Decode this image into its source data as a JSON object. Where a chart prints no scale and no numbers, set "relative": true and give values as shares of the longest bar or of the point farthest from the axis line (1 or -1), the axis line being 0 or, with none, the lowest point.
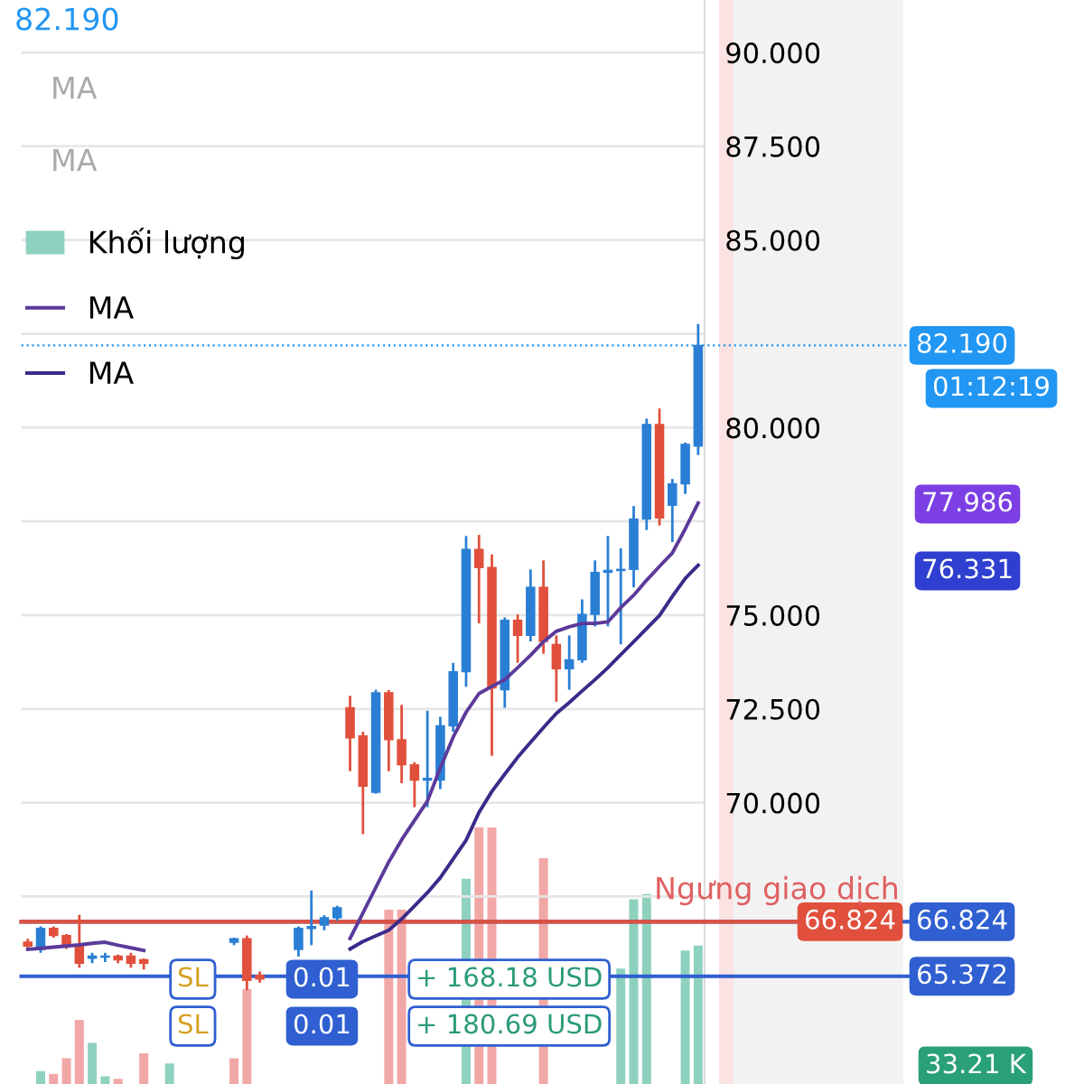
{
  "chart_data": [
    {
      "type": "candlestick",
      "categories": [
        null,
        null,
        null,
        null,
        null,
        null,
        null,
        null,
        null,
        null,
        null,
        null,
        null,
        null,
        null,
        null,
        null,
        null,
        null,
        null,
        null,
        null,
        null,
        null,
        null,
        null,
        null,
        null,
        null,
        null,
        null,
        null,
        null,
        null,
        null,
        null,
        null,
        null,
        null,
        null,
        null,
        null,
        null,
        null,
        null,
        null,
        null,
        null,
        null,
        null,
        null,
        null,
        null
      ],
      "ohlc": [
        [
          66.28,
          66.37,
          66.09,
          66.18
        ],
        [
          66.09,
          66.7,
          66.0,
          66.65
        ],
        [
          66.65,
          66.7,
          66.4,
          66.46
        ],
        [
          66.46,
          66.5,
          66.1,
          66.18
        ],
        [
          66.18,
          67.01,
          65.6,
          65.72
        ],
        [
          65.85,
          66.0,
          65.72,
          65.91
        ],
        [
          65.88,
          66.0,
          65.75,
          65.91
        ],
        [
          65.91,
          65.95,
          65.72,
          65.81
        ],
        [
          65.91,
          66.0,
          65.6,
          65.72
        ],
        [
          65.81,
          65.85,
          65.55,
          65.72
        ],
        null,
        null,
        null,
        null,
        null,
        null,
        [
          66.28,
          66.4,
          66.2,
          66.37
        ],
        [
          66.37,
          66.46,
          65.0,
          65.26
        ],
        [
          65.4,
          65.5,
          65.2,
          65.3
        ],
        null,
        null,
        [
          66.09,
          66.7,
          65.9,
          66.65
        ],
        [
          66.65,
          67.66,
          66.2,
          66.7
        ],
        [
          66.74,
          67.0,
          66.6,
          66.93
        ],
        [
          66.93,
          67.25,
          66.85,
          67.2
        ],
        [
          72.53,
          72.85,
          70.84,
          71.73
        ],
        [
          71.78,
          71.89,
          69.16,
          70.44
        ],
        [
          70.28,
          73.01,
          70.24,
          72.93
        ],
        [
          72.93,
          73.0,
          70.84,
          71.68
        ],
        [
          71.68,
          72.61,
          70.52,
          71.01
        ],
        [
          71.01,
          71.08,
          69.88,
          70.6
        ],
        [
          70.6,
          72.45,
          69.88,
          70.65
        ],
        [
          70.6,
          72.29,
          70.36,
          72.05
        ],
        [
          72.05,
          73.73,
          71.89,
          73.49
        ],
        [
          73.49,
          77.11,
          73.09,
          76.75
        ],
        [
          76.75,
          77.14,
          74.78,
          76.27
        ],
        [
          76.27,
          76.62,
          71.25,
          73.06
        ],
        [
          73.01,
          74.94,
          72.53,
          74.86
        ],
        [
          74.86,
          75.02,
          73.73,
          74.46
        ],
        [
          74.46,
          76.22,
          74.3,
          75.74
        ],
        [
          75.74,
          76.46,
          73.97,
          74.3
        ],
        [
          74.22,
          74.46,
          72.69,
          73.57
        ],
        [
          73.57,
          74.46,
          73.01,
          73.81
        ],
        [
          73.81,
          75.42,
          73.73,
          75.02
        ],
        [
          75.02,
          76.46,
          74.7,
          76.14
        ],
        [
          76.14,
          77.11,
          74.7,
          76.19
        ],
        [
          76.19,
          76.78,
          74.22,
          76.22
        ],
        [
          76.22,
          77.91,
          75.74,
          77.56
        ],
        [
          77.56,
          80.24,
          77.27,
          80.08
        ],
        [
          80.08,
          80.51,
          77.39,
          77.59
        ],
        [
          77.93,
          78.63,
          76.95,
          78.5
        ],
        [
          78.5,
          79.6,
          78.23,
          79.55
        ],
        [
          79.51,
          82.76,
          79.27,
          82.19
        ]
      ],
      "colors": [
        "#e0503c",
        "#2a7fd4",
        "#e0503c",
        "#e0503c",
        "#e0503c",
        "#2a7fd4",
        "#2a7fd4",
        "#e0503c",
        "#e0503c",
        "#e0503c",
        null,
        null,
        null,
        null,
        null,
        null,
        "#2a7fd4",
        "#e0503c",
        "#e0503c",
        null,
        null,
        "#2a7fd4",
        "#2a7fd4",
        "#2a7fd4",
        "#2a7fd4",
        "#e0503c",
        "#e0503c",
        "#2a7fd4",
        "#e0503c",
        "#e0503c",
        "#e0503c",
        "#2a7fd4",
        "#2a7fd4",
        "#2a7fd4",
        "#2a7fd4",
        "#e0503c",
        "#e0503c",
        "#2a7fd4",
        "#e0503c",
        "#2a7fd4",
        "#e0503c",
        "#e0503c",
        "#2a7fd4",
        "#2a7fd4",
        "#2a7fd4",
        "#2a7fd4",
        "#2a7fd4",
        "#2a7fd4",
        "#2a7fd4",
        "#e0503c",
        "#2a7fd4",
        "#2a7fd4",
        "#2a7fd4"
      ],
      "series": [
        {
          "name": "MA",
          "type": "line",
          "color": "#5b3a9a",
          "values": [
            66.09,
            66.12,
            66.15,
            66.18,
            66.21,
            66.25,
            66.28,
            66.2,
            66.13,
            66.06,
            null,
            null,
            null,
            null,
            null,
            null,
            null,
            null,
            null,
            null,
            null,
            null,
            null,
            null,
            null,
            66.38,
            67.06,
            67.74,
            68.42,
            69.01,
            69.53,
            70.04,
            70.93,
            71.75,
            72.41,
            72.91,
            73.1,
            73.28,
            73.6,
            73.93,
            74.29,
            74.57,
            74.69,
            74.78,
            74.78,
            74.82,
            75.2,
            75.53,
            75.93,
            76.3,
            76.66,
            77.3,
            77.99
          ]
        },
        {
          "name": "MA",
          "type": "line",
          "color": "#3b2a8a",
          "values": [
            null,
            null,
            null,
            null,
            null,
            null,
            null,
            null,
            null,
            null,
            null,
            null,
            null,
            null,
            null,
            null,
            null,
            null,
            null,
            null,
            null,
            null,
            null,
            null,
            null,
            66.1,
            66.3,
            66.45,
            66.6,
            66.9,
            67.25,
            67.6,
            68.0,
            68.5,
            69.0,
            69.74,
            70.3,
            70.76,
            71.21,
            71.61,
            72.0,
            72.38,
            72.67,
            72.98,
            73.28,
            73.6,
            73.95,
            74.29,
            74.64,
            74.99,
            75.5,
            75.98,
            76.33
          ]
        }
      ],
      "ylim": [
        62.5,
        91.4
      ],
      "yticks": [
        {
          "value": 67.5,
          "label": null
        },
        {
          "value": 70,
          "label": "70.000"
        },
        {
          "value": 72.5,
          "label": "72.500"
        },
        {
          "value": 75,
          "label": "75.000"
        },
        {
          "value": 77.5,
          "label": null
        },
        {
          "value": 80,
          "label": "80.000"
        },
        {
          "value": 82.5,
          "label": null
        },
        {
          "value": 85,
          "label": "85.000"
        },
        {
          "value": 87.5,
          "label": "87.500"
        },
        {
          "value": 90,
          "label": "90.000"
        }
      ],
      "tick_labels": "y",
      "grid": "y",
      "legend": "top left",
      "ref_lines": [
        {
          "axis": "y",
          "value": 82.19,
          "label": "82.190",
          "color": "#2196f3",
          "line_style": "dotted"
        },
        {
          "axis": "y",
          "value": 66.824,
          "label": "66.824",
          "color": "#2f5fd0",
          "line_style": "solid"
        },
        {
          "axis": "y",
          "value": 66.824,
          "label": "66.824",
          "color": "#e0503c",
          "line_style": "solid"
        },
        {
          "axis": "y",
          "value": 65.372,
          "label": "65.372",
          "color": "#2f5fd0",
          "line_style": "solid"
        }
      ],
      "annotations": [
        "82.190",
        "MA",
        "MA",
        "01:12:19",
        "Ngưng giao dịch",
        "0.01",
        "+ 168.18 USD",
        "0.01",
        "+ 180.69 USD",
        "SL",
        "SL",
        "33.21 K",
        "77.986",
        "76.331"
      ]
    },
    {
      "type": "bar",
      "relative": true,
      "categories": [
        null,
        null,
        null,
        null,
        null,
        null,
        null,
        null,
        null,
        null,
        null,
        null,
        null,
        null,
        null,
        null,
        null,
        null,
        null,
        null,
        null,
        null,
        null,
        null,
        null,
        null,
        null,
        null,
        null,
        null,
        null,
        null,
        null,
        null,
        null,
        null,
        null,
        null,
        null,
        null,
        null,
        null,
        null,
        null,
        null,
        null,
        null,
        null,
        null,
        null,
        null,
        null,
        null
      ],
      "series": [
        {
          "name": "Khối lượng",
          "color": "#8fd1bf",
          "values": [
            null,
            0.05,
            0.04,
            0.1,
            0.25,
            0.16,
            0.03,
            0.02,
            null,
            0.12,
            null,
            0.08,
            null,
            null,
            null,
            null,
            0.1,
            0.37,
            null,
            null,
            null,
            null,
            null,
            null,
            null,
            null,
            null,
            null,
            0.68,
            0.68,
            null,
            null,
            null,
            null,
            0.8,
            1.0,
            1.0,
            null,
            null,
            null,
            0.88,
            null,
            null,
            null,
            null,
            null,
            0.45,
            0.72,
            0.74,
            null,
            null,
            0.52,
            0.54
          ],
          "colors": [
            null,
            "#8fd1bf",
            "#f2a7a7",
            "#f2a7a7",
            "#f2a7a7",
            "#8fd1bf",
            "#8fd1bf",
            "#f2a7a7",
            null,
            "#f2a7a7",
            null,
            "#8fd1bf",
            null,
            null,
            null,
            null,
            "#f2a7a7",
            "#f2a7a7",
            null,
            null,
            null,
            null,
            null,
            null,
            null,
            null,
            null,
            null,
            "#f2a7a7",
            "#f2a7a7",
            null,
            null,
            null,
            null,
            "#8fd1bf",
            "#f2a7a7",
            "#f2a7a7",
            null,
            null,
            null,
            "#f2a7a7",
            null,
            null,
            null,
            null,
            null,
            "#8fd1bf",
            "#8fd1bf",
            "#8fd1bf",
            null,
            null,
            "#8fd1bf",
            "#8fd1bf"
          ]
        }
      ],
      "tick_labels": false
    }
  ]
}
